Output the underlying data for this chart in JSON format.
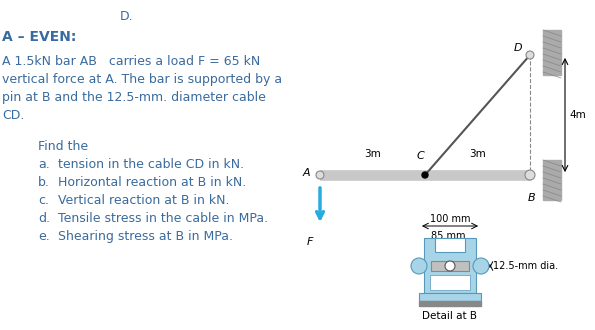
{
  "title_text": "A – EVEN:",
  "problem_text": "A 1.5kN bar AB   carries a load F = 65 kN\nvertical force at A. The bar is supported by a\npin at B and the 12.5-mm. diameter cable\nCD.",
  "find_text": "Find the",
  "items": [
    "tension in the cable CD in kN.",
    "Horizontal reaction at B in kN.",
    "Vertical reaction at B in kN.",
    "Tensile stress in the cable in MPa.",
    "Shearing stress at B in MPa."
  ],
  "item_labels": [
    "a.",
    "b.",
    "c.",
    "d.",
    "e."
  ],
  "bg_color": "#ffffff",
  "text_color": "#3a6b9e",
  "bar_color": "#c8c8c8",
  "cable_color": "#555555",
  "arrow_color": "#29abe2",
  "wall_color": "#aaaaaa",
  "detail_fill": "#a8d4e8",
  "dim_label_size": 7,
  "main_text_size": 9
}
